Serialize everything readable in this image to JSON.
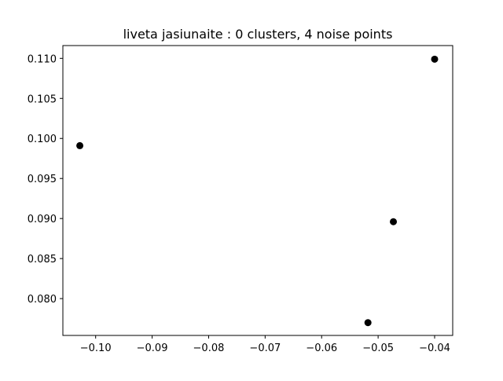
{
  "chart_data": {
    "type": "scatter",
    "title": "liveta jasiunaite : 0 clusters, 4 noise points",
    "xlabel": "",
    "ylabel": "",
    "xlim": [
      -0.1058,
      -0.0368
    ],
    "ylim": [
      0.0754,
      0.1116
    ],
    "x_ticks": [
      -0.1,
      -0.09,
      -0.08,
      -0.07,
      -0.06,
      -0.05,
      -0.04
    ],
    "x_tick_labels": [
      "−0.10",
      "−0.09",
      "−0.08",
      "−0.07",
      "−0.06",
      "−0.05",
      "−0.04"
    ],
    "y_ticks": [
      0.08,
      0.085,
      0.09,
      0.095,
      0.1,
      0.105,
      0.11
    ],
    "y_tick_labels": [
      "0.080",
      "0.085",
      "0.090",
      "0.095",
      "0.100",
      "0.105",
      "0.110"
    ],
    "grid": false,
    "marker_color": "#000000",
    "series": [
      {
        "points": [
          {
            "x": -0.1028,
            "y": 0.0991
          },
          {
            "x": -0.0518,
            "y": 0.077
          },
          {
            "x": -0.0473,
            "y": 0.0896
          },
          {
            "x": -0.04,
            "y": 0.1099
          }
        ]
      }
    ]
  }
}
